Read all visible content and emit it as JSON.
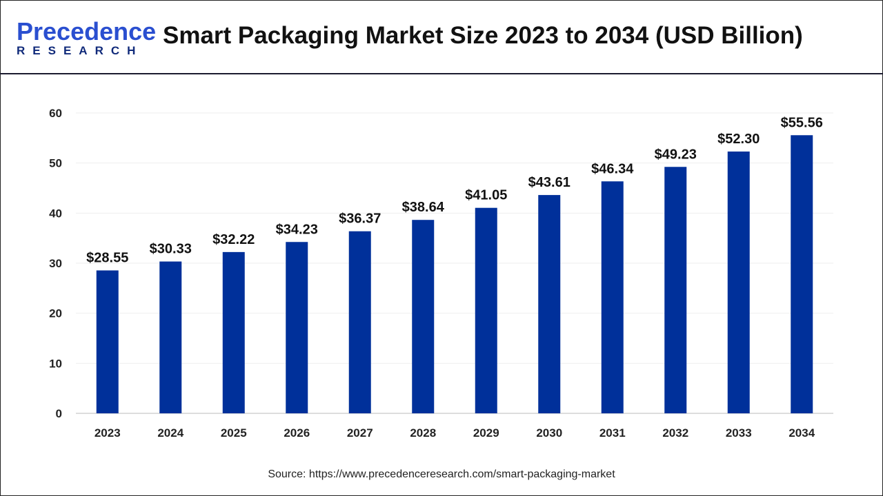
{
  "logo": {
    "line1": "Precedence",
    "line2": "RESEARCH"
  },
  "chart_data": {
    "type": "bar",
    "title": "Smart Packaging Market Size 2023 to 2034 (USD Billion)",
    "categories": [
      "2023",
      "2024",
      "2025",
      "2026",
      "2027",
      "2028",
      "2029",
      "2030",
      "2031",
      "2032",
      "2033",
      "2034"
    ],
    "values": [
      28.55,
      30.33,
      32.22,
      34.23,
      36.37,
      38.64,
      41.05,
      43.61,
      46.34,
      49.23,
      52.3,
      55.56
    ],
    "data_labels": [
      "$28.55",
      "$30.33",
      "$32.22",
      "$34.23",
      "$36.37",
      "$38.64",
      "$41.05",
      "$43.61",
      "$46.34",
      "$49.23",
      "$52.30",
      "$55.56"
    ],
    "yticks": [
      0,
      10,
      20,
      30,
      40,
      50,
      60
    ],
    "ylim": [
      0,
      60
    ],
    "grid": true,
    "bar_color": "#00309a",
    "xlabel": "",
    "ylabel": ""
  },
  "source": "Source: https://www.precedenceresearch.com/smart-packaging-market"
}
